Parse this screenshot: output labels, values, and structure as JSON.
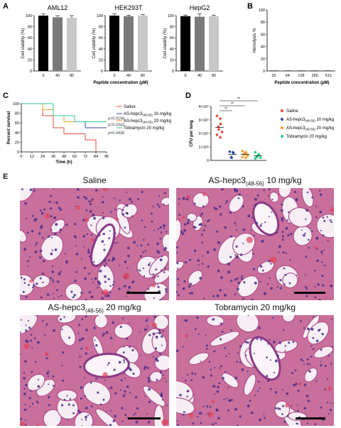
{
  "panels": {
    "A": {
      "letter": "A",
      "ylabel": "Cell viability (%)",
      "xlabel": "Peptide concentration (µM)",
      "subplots": [
        {
          "title": "AML12",
          "categories": [
            "0",
            "40",
            "80"
          ],
          "values": [
            100,
            97,
            96
          ],
          "errors": [
            3,
            3,
            4
          ]
        },
        {
          "title": "HEK293T",
          "categories": [
            "0",
            "40",
            "80"
          ],
          "values": [
            100,
            99,
            100
          ],
          "errors": [
            3,
            2,
            2
          ]
        },
        {
          "title": "HepG2",
          "categories": [
            "0",
            "40",
            "80"
          ],
          "values": [
            99,
            98,
            99
          ],
          "errors": [
            2,
            5,
            2
          ]
        }
      ],
      "yticks": [
        "0",
        "20",
        "40",
        "60",
        "80",
        "100"
      ],
      "bar_colors": [
        "#000000",
        "#7a7a7a",
        "#c8c8c8"
      ]
    },
    "B": {
      "letter": "B",
      "ylabel": "Hemolysis %",
      "xlabel": "Peptide concentration (µM)",
      "categories": [
        "32",
        "64",
        "128",
        "256",
        "512"
      ],
      "values": [
        0.2,
        0.2,
        0.3,
        0.4,
        0.8
      ],
      "yticks": [
        "0",
        "20",
        "40",
        "60",
        "80",
        "100"
      ]
    },
    "C": {
      "letter": "C",
      "ylabel": "Percent survival",
      "xlabel": "Time (h)",
      "xticks": [
        "0",
        "12",
        "24",
        "36",
        "48",
        "60",
        "72",
        "84",
        "96"
      ],
      "yticks": [
        "0",
        "20",
        "40",
        "60",
        "80",
        "100"
      ],
      "legend": {
        "saline": "Saline",
        "as10_prefix": "AS-hepc3",
        "as10_sub": "(48-56)",
        "as10_suffix": " 10 mg/kg",
        "as20_prefix": "AS-hepc3",
        "as20_sub": "(48-56)",
        "as20_suffix": " 20 mg/kg",
        "tob": "Tobramycin 20 mg/kg"
      },
      "pvalues": [
        "p=0.0198",
        "p=0.0342",
        "p=0.0438"
      ],
      "colors": {
        "saline": "#e74c3c",
        "as10": "#2b4b9b",
        "as20": "#f39c2b",
        "tob": "#2ecc8f"
      }
    },
    "D": {
      "letter": "D",
      "ylabel": "CFU per lung",
      "yticks": [
        "0",
        "1×10⁵",
        "2×10⁵",
        "3×10⁵",
        "4×10⁵"
      ],
      "sig": [
        "**",
        "**",
        "**"
      ],
      "legend": {
        "saline": "Saline",
        "as10_prefix": "AS-hepc3",
        "as10_sub": "(48-56)",
        "as10_suffix": " 10 mg/kg",
        "as20_prefix": "AS-hepc3",
        "as20_sub": "(48-56)",
        "as20_suffix": " 20 mg/kg",
        "tob": "Tobramycin 20 mg/kg"
      }
    },
    "E": {
      "letter": "E",
      "images": [
        {
          "title_prefix": "Saline",
          "title_sub": "",
          "title_suffix": ""
        },
        {
          "title_prefix": "AS-hepc3",
          "title_sub": "(48-56)",
          "title_suffix": " 10 mg/kg"
        },
        {
          "title_prefix": "AS-hepc3",
          "title_sub": "(48-56)",
          "title_suffix": " 20 mg/kg"
        },
        {
          "title_prefix": "Tobramycin 20 mg/kg",
          "title_sub": "",
          "title_suffix": ""
        }
      ]
    }
  },
  "chart_data": [
    {
      "type": "bar",
      "title": "AML12",
      "categories": [
        "0",
        "40",
        "80"
      ],
      "values": [
        100,
        97,
        96
      ],
      "xlabel": "Peptide concentration (µM)",
      "ylabel": "Cell viability (%)",
      "ylim": [
        0,
        100
      ]
    },
    {
      "type": "bar",
      "title": "HEK293T",
      "categories": [
        "0",
        "40",
        "80"
      ],
      "values": [
        100,
        99,
        100
      ],
      "xlabel": "Peptide concentration (µM)",
      "ylabel": "Cell viability (%)",
      "ylim": [
        0,
        100
      ]
    },
    {
      "type": "bar",
      "title": "HepG2",
      "categories": [
        "0",
        "40",
        "80"
      ],
      "values": [
        99,
        98,
        99
      ],
      "xlabel": "Peptide concentration (µM)",
      "ylabel": "Cell viability (%)",
      "ylim": [
        0,
        100
      ]
    },
    {
      "type": "bar",
      "categories": [
        "32",
        "64",
        "128",
        "256",
        "512"
      ],
      "values": [
        0.2,
        0.2,
        0.3,
        0.4,
        0.8
      ],
      "xlabel": "Peptide concentration (µM)",
      "ylabel": "Hemolysis %",
      "ylim": [
        0,
        100
      ]
    },
    {
      "type": "line",
      "xlabel": "Time (h)",
      "ylabel": "Percent survival",
      "xlim": [
        0,
        96
      ],
      "ylim": [
        0,
        100
      ],
      "series": [
        {
          "name": "Saline",
          "x": [
            0,
            12,
            24,
            36,
            48,
            60,
            72,
            84
          ],
          "y": [
            100,
            100,
            75,
            50,
            37.5,
            37.5,
            25,
            0
          ]
        },
        {
          "name": "AS-hepc3(48-56) 10 mg/kg",
          "x": [
            0,
            12,
            24,
            36,
            48,
            60,
            72,
            84,
            96
          ],
          "y": [
            100,
            100,
            87.5,
            75,
            62.5,
            62.5,
            50,
            50,
            50
          ]
        },
        {
          "name": "AS-hepc3(48-56) 20 mg/kg",
          "x": [
            0,
            12,
            24,
            36,
            48,
            60,
            72,
            84,
            96
          ],
          "y": [
            100,
            100,
            87.5,
            75,
            62.5,
            62.5,
            62.5,
            62.5,
            62.5
          ]
        },
        {
          "name": "Tobramycin 20 mg/kg",
          "x": [
            0,
            12,
            24,
            36,
            48,
            60,
            72,
            84,
            96
          ],
          "y": [
            100,
            100,
            100,
            75,
            75,
            62.5,
            62.5,
            62.5,
            62.5
          ]
        }
      ]
    },
    {
      "type": "scatter",
      "ylabel": "CFU per lung",
      "ylim": [
        0,
        400000
      ],
      "series": [
        {
          "name": "Saline",
          "values": [
            330000,
            310000,
            270000,
            250000,
            230000,
            210000,
            190000,
            170000
          ]
        },
        {
          "name": "AS-hepc3(48-56) 10 mg/kg",
          "values": [
            65000,
            60000,
            55000,
            25000,
            20000
          ]
        },
        {
          "name": "AS-hepc3(48-56) 20 mg/kg",
          "values": [
            70000,
            60000,
            55000,
            50000,
            45000,
            35000,
            25000,
            20000
          ]
        },
        {
          "name": "Tobramycin 20 mg/kg",
          "values": [
            60000,
            45000,
            40000,
            30000,
            25000,
            20000,
            15000
          ]
        }
      ]
    }
  ]
}
